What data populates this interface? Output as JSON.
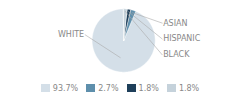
{
  "chart_data": {
    "type": "pie",
    "categories": [
      "WHITE",
      "ASIAN",
      "HISPANIC",
      "BLACK"
    ],
    "values": [
      93.7,
      2.7,
      1.8,
      1.8
    ],
    "value_labels": [
      "93.7%",
      "2.7%",
      "1.8%",
      "1.8%"
    ],
    "colors": [
      "#d4dfe8",
      "#5e8fac",
      "#1e3f5a",
      "#c5d2db"
    ],
    "legend": "bottom"
  }
}
